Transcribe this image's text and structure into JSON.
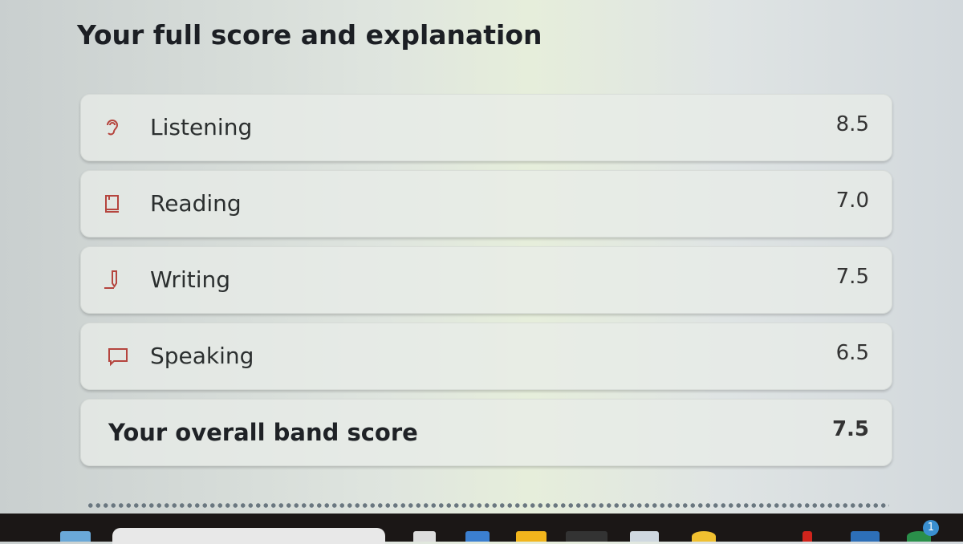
{
  "title": "Your full score and explanation",
  "scores": [
    {
      "label": "Listening",
      "value": "8.5",
      "icon": "ear-icon"
    },
    {
      "label": "Reading",
      "value": "7.0",
      "icon": "book-icon"
    },
    {
      "label": "Writing",
      "value": "7.5",
      "icon": "pencil-icon"
    },
    {
      "label": "Speaking",
      "value": "6.5",
      "icon": "speech-bubble-icon"
    }
  ],
  "overall": {
    "label": "Your overall band score",
    "value": "7.5"
  },
  "taskbar": {
    "notification_count": "1"
  },
  "colors": {
    "icon": "#b5453e",
    "taskbar": "#1b1716"
  }
}
